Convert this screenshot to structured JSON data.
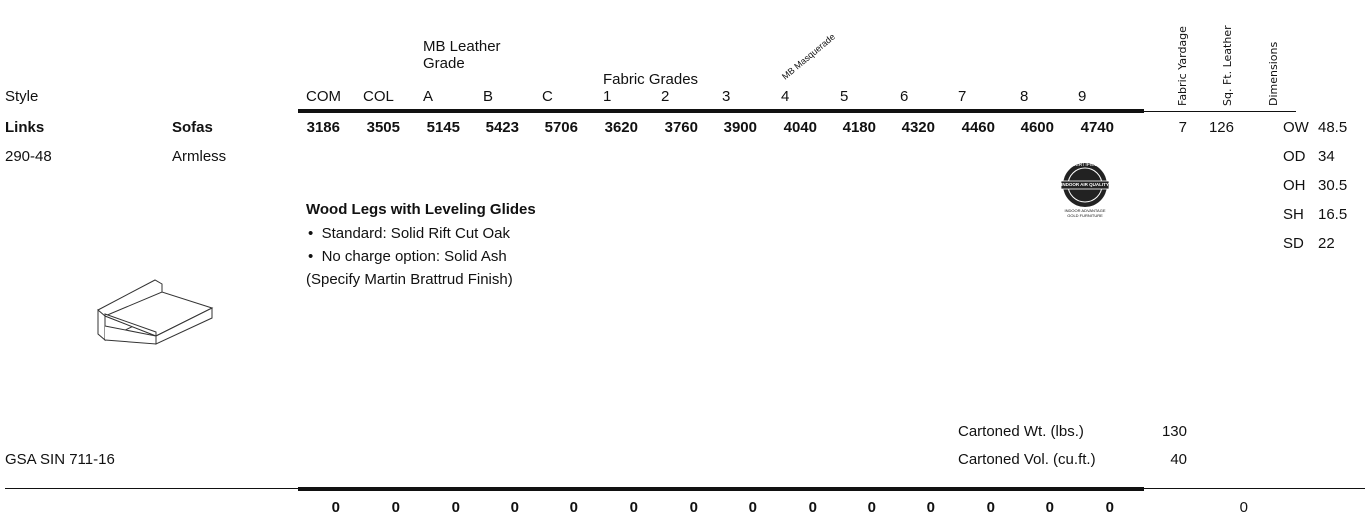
{
  "header": {
    "style": "Style",
    "mb_leather_grade": "MB Leather Grade",
    "fabric_grades": "Fabric Grades",
    "mb_masquerade": "MB Masquerade",
    "columns": [
      "COM",
      "COL",
      "A",
      "B",
      "C",
      "1",
      "2",
      "3",
      "4",
      "5",
      "6",
      "7",
      "8",
      "9"
    ],
    "fabric_yardage": "Fabric Yardage",
    "sq_ft_leather": "Sq. Ft. Leather",
    "dimensions": "Dimensions"
  },
  "product": {
    "name": "Links",
    "category": "Sofas",
    "number": "290-48",
    "variant": "Armless",
    "prices": [
      3186,
      3505,
      5145,
      5423,
      5706,
      3620,
      3760,
      3900,
      4040,
      4180,
      4320,
      4460,
      4600,
      4740
    ],
    "fabric_yardage": 7,
    "sq_ft_leather": 126,
    "dimensions": [
      {
        "label": "OW",
        "value": 48.5
      },
      {
        "label": "OD",
        "value": 34
      },
      {
        "label": "OH",
        "value": 30.5
      },
      {
        "label": "SH",
        "value": 16.5
      },
      {
        "label": "SD",
        "value": 22
      }
    ]
  },
  "legs": {
    "title": "Wood Legs with Leveling Glides",
    "options": [
      "Standard: Solid Rift Cut Oak",
      "No charge option: Solid Ash"
    ],
    "note": "(Specify Martin Brattrud Finish)"
  },
  "badge": {
    "top": "CERTIFIED",
    "title": "INDOOR AIR QUALITY",
    "caption": "INDOOR ADVANTAGE GOLD FURNITURE"
  },
  "shipping": {
    "weight_label": "Cartoned Wt. (lbs.)",
    "weight": 130,
    "volume_label": "Cartoned Vol. (cu.ft.)",
    "volume": 40
  },
  "gsa": "GSA SIN 711-16",
  "totals": {
    "prices": [
      0,
      0,
      0,
      0,
      0,
      0,
      0,
      0,
      0,
      0,
      0,
      0,
      0,
      0
    ],
    "sq_ft_leather": 0
  }
}
